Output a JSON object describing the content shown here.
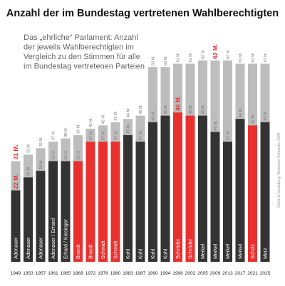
{
  "chart_data": {
    "type": "bar",
    "title": "Anzahl der im Bundestag vertretenen Wahlberechtigten",
    "subtitle": [
      "Das „ehrliche“ Parlament: Anzahl",
      "der jeweils Wahlberechtigten im",
      "Vergleich zu den Stimmen für alle",
      "im Bundestag vertretenen Parteien"
    ],
    "credit": "Grafik & Gestaltung: Wahlrecht Schneider 2025",
    "categories": [
      "1949",
      "1953",
      "1957",
      "1961",
      "1965",
      "1969",
      "1972",
      "1976",
      "1980",
      "1983",
      "1987",
      "1990",
      "1994",
      "1998",
      "2002",
      "2005",
      "2009",
      "2013",
      "2017",
      "2021",
      "2025"
    ],
    "leaders": [
      "Adenauer",
      "Adenauer",
      "Adenauer",
      "Adenauer / Erhard",
      "Erhard / Kiesinger",
      "Brandt",
      "Brandt",
      "Schmidt",
      "Schmidt",
      "Kohl",
      "Kohl",
      "Kohl",
      "Kohl",
      "Schröder",
      "Schröder",
      "Merkel",
      "Merkel",
      "Merkel",
      "Merkel",
      "Scholz",
      "Merz"
    ],
    "ylim": [
      0,
      62
    ],
    "series": [
      {
        "color": "#bdbdbd",
        "values": [
          31,
          33,
          35,
          37,
          38,
          39,
          41,
          42,
          43,
          44,
          45,
          60,
          60,
          61,
          61,
          62,
          62,
          62,
          61,
          61,
          61
        ],
        "value_labels": [
          "31 M.",
          "33 M.",
          "35 M.",
          "37 M.",
          "38 M.",
          "39 M.",
          "41 M.",
          "42 M.",
          "43 M.",
          "44 M.",
          "45 M.",
          "60 M.",
          "60 M.",
          "61 M.",
          "61 M.",
          "62 M.",
          "62 M.",
          "62 M.",
          "61 M.",
          "61 M.",
          "61 M."
        ],
        "label_colors": [
          "#e8312f",
          "#777",
          "#777",
          "#777",
          "#777",
          "#777",
          "#777",
          "#777",
          "#777",
          "#777",
          "#777",
          "#777",
          "#777",
          "#777",
          "#777",
          "#777",
          "#e8312f",
          "#777",
          "#777",
          "#777",
          "#777"
        ]
      },
      {
        "colors": [
          "#333",
          "#333",
          "#333",
          "#333",
          "#333",
          "#e8312f",
          "#e8312f",
          "#e8312f",
          "#e8312f",
          "#333",
          "#333",
          "#333",
          "#333",
          "#e8312f",
          "#e8312f",
          "#333",
          "#333",
          "#333",
          "#333",
          "#e8312f",
          "#333"
        ],
        "values": [
          22,
          26,
          28,
          31,
          31,
          31,
          37,
          37,
          37,
          39,
          37,
          43,
          45,
          46,
          45,
          45,
          40,
          37,
          44,
          42,
          43
        ],
        "value_labels": [
          "22 M.",
          "26 M.",
          "28 M.",
          "31 M.",
          "31 M.",
          "31 M.",
          "37 M.",
          "37 M.",
          "37 M.",
          "39 M.",
          "37 M.",
          "43 M.",
          "45 M.",
          "46 M.",
          "45 M.",
          "45 M.",
          "40 M.",
          "37 M.",
          "44 M.",
          "42 M.",
          "43 M."
        ],
        "label_colors": [
          "#e8312f",
          "#777",
          "#777",
          "#777",
          "#777",
          "#777",
          "#777",
          "#777",
          "#777",
          "#777",
          "#777",
          "#777",
          "#777",
          "#e8312f",
          "#777",
          "#777",
          "#777",
          "#777",
          "#777",
          "#777",
          "#777"
        ]
      }
    ]
  }
}
